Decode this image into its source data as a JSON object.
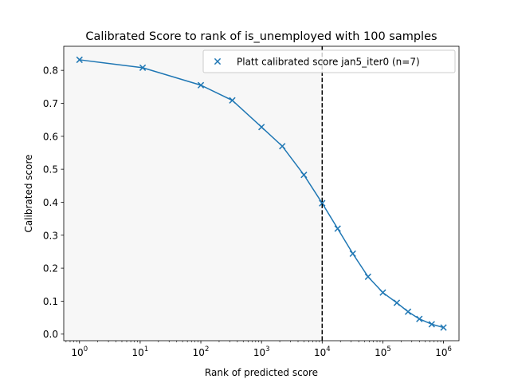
{
  "chart_data": {
    "type": "line",
    "title": "Calibrated Score to rank of is_unemployed with 100 samples",
    "xlabel": "Rank of predicted score",
    "ylabel": "Calibrated score",
    "xscale": "log",
    "xlim": [
      0.55,
      1800000
    ],
    "ylim": [
      -0.02,
      0.873
    ],
    "xticks": [
      1,
      10,
      100,
      1000,
      10000,
      100000,
      1000000
    ],
    "xtick_labels": [
      {
        "base": "10",
        "exp": "0"
      },
      {
        "base": "10",
        "exp": "1"
      },
      {
        "base": "10",
        "exp": "2"
      },
      {
        "base": "10",
        "exp": "3"
      },
      {
        "base": "10",
        "exp": "4"
      },
      {
        "base": "10",
        "exp": "5"
      },
      {
        "base": "10",
        "exp": "6"
      }
    ],
    "yticks": [
      0.0,
      0.1,
      0.2,
      0.3,
      0.4,
      0.5,
      0.6,
      0.7,
      0.8
    ],
    "ytick_labels": [
      "0.0",
      "0.1",
      "0.2",
      "0.3",
      "0.4",
      "0.5",
      "0.6",
      "0.7",
      "0.8"
    ],
    "grid": false,
    "vline_x": 10000,
    "shaded_region_x": [
      0.55,
      10000
    ],
    "series": [
      {
        "name": "Platt calibrated score jan5_iter0 (n=7)",
        "color": "#1f77b4",
        "marker": "x",
        "x": [
          1,
          11,
          100,
          330,
          1000,
          2200,
          5000,
          10000,
          18000,
          32000,
          57000,
          100000,
          170000,
          260000,
          400000,
          640000,
          1000000
        ],
        "y": [
          0.832,
          0.808,
          0.755,
          0.709,
          0.628,
          0.57,
          0.483,
          0.397,
          0.32,
          0.244,
          0.174,
          0.126,
          0.095,
          0.068,
          0.046,
          0.03,
          0.02
        ]
      }
    ],
    "legend_position": "top-right"
  }
}
